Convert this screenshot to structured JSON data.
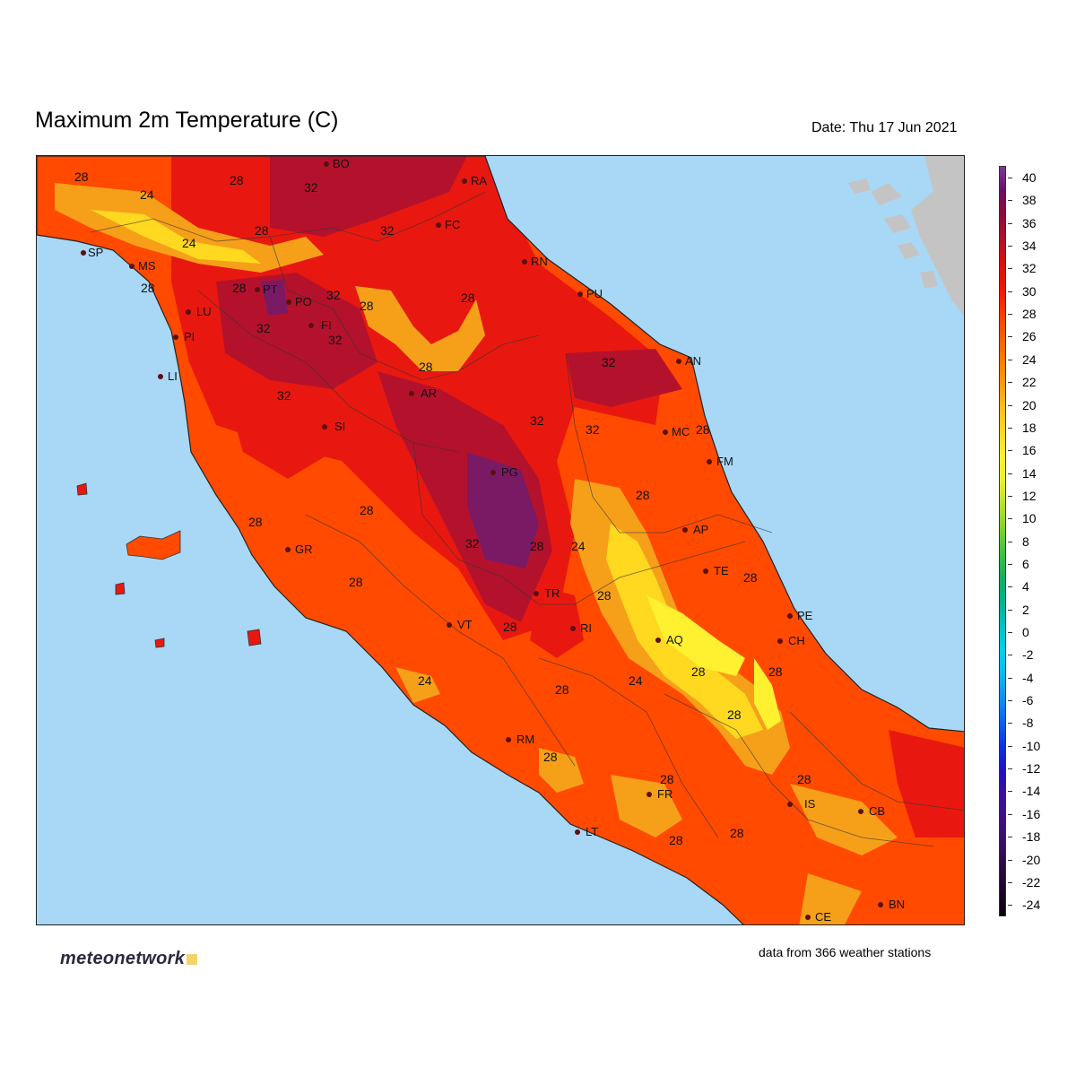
{
  "header": {
    "title": "Maximum 2m Temperature (C)",
    "date": "Date: Thu 17 Jun 2021"
  },
  "footer": {
    "logo_text": "meteonetwork",
    "stations": "data from 366 weather stations"
  },
  "colors": {
    "sea": "#a8d8f6",
    "land_foreign": "#c4c4c4",
    "t_22_26": "#f6a01a",
    "t_26_30": "#ff4a00",
    "t_30_32": "#e81810",
    "t_32_36": "#b4122c",
    "t_36_40": "#7a1a64"
  },
  "legend": {
    "labels": [
      "40",
      "38",
      "36",
      "34",
      "32",
      "30",
      "28",
      "26",
      "24",
      "22",
      "20",
      "18",
      "16",
      "14",
      "12",
      "10",
      "8",
      "6",
      "4",
      "2",
      "0",
      "-2",
      "-4",
      "-6",
      "-8",
      "-10",
      "-12",
      "-14",
      "-16",
      "-18",
      "-20",
      "-22",
      "-24"
    ],
    "gradient": [
      "#7a3aa0",
      "#6a1060",
      "#8e0c3c",
      "#b0102a",
      "#d81010",
      "#f01408",
      "#ff3a00",
      "#ff5a00",
      "#ff7a00",
      "#ff9a10",
      "#ffbc20",
      "#ffd820",
      "#fff030",
      "#e8f030",
      "#b8e030",
      "#80d030",
      "#40c040",
      "#10b060",
      "#00b090",
      "#00c0c0",
      "#00d0e8",
      "#10b8f0",
      "#1090f0",
      "#1060f0",
      "#1030e0",
      "#2010c0",
      "#3a10a0",
      "#401080",
      "#381060",
      "#2a0a40",
      "#1a0628",
      "#0a0010"
    ]
  },
  "cities": [
    {
      "code": "BO"
    },
    {
      "code": "RA"
    },
    {
      "code": "FC"
    },
    {
      "code": "RN"
    },
    {
      "code": "PU"
    },
    {
      "code": "SP"
    },
    {
      "code": "MS"
    },
    {
      "code": "LU"
    },
    {
      "code": "PT"
    },
    {
      "code": "PO"
    },
    {
      "code": "FI"
    },
    {
      "code": "PI"
    },
    {
      "code": "LI"
    },
    {
      "code": "AR"
    },
    {
      "code": "AN"
    },
    {
      "code": "SI"
    },
    {
      "code": "MC"
    },
    {
      "code": "FM"
    },
    {
      "code": "PG"
    },
    {
      "code": "AP"
    },
    {
      "code": "GR"
    },
    {
      "code": "TE"
    },
    {
      "code": "TR"
    },
    {
      "code": "PE"
    },
    {
      "code": "VT"
    },
    {
      "code": "RI"
    },
    {
      "code": "AQ"
    },
    {
      "code": "CH"
    },
    {
      "code": "RM"
    },
    {
      "code": "FR"
    },
    {
      "code": "IS"
    },
    {
      "code": "CB"
    },
    {
      "code": "LT"
    },
    {
      "code": "BN"
    },
    {
      "code": "CE"
    }
  ],
  "contour_labels": [
    "28",
    "24",
    "28",
    "32",
    "24",
    "28",
    "32",
    "28",
    "28",
    "32",
    "32",
    "28",
    "32",
    "32",
    "32",
    "28",
    "32",
    "32",
    "28",
    "28",
    "28",
    "28",
    "32",
    "28",
    "24",
    "28",
    "28",
    "28",
    "28",
    "28",
    "24",
    "28",
    "24",
    "28",
    "28",
    "28",
    "28",
    "28",
    "28",
    "28",
    "28"
  ]
}
